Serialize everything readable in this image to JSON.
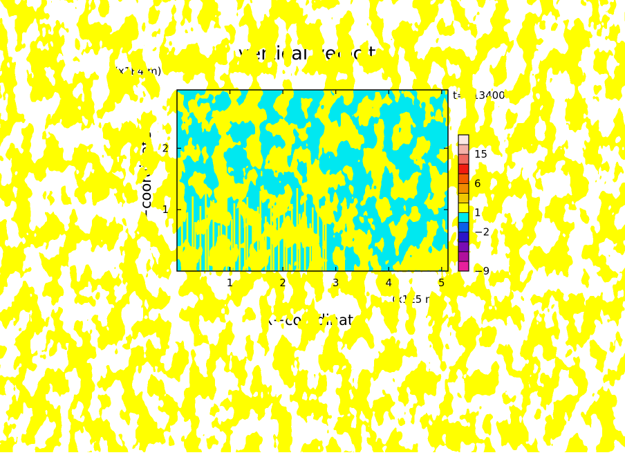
{
  "chart_data": {
    "type": "heatmap",
    "title": "vertical velocity",
    "xlabel": "X−coordinate",
    "ylabel": "Z−coordinate",
    "x_unit": "(x1E5 m)",
    "y_unit": "(x1E4 m)",
    "time_label": "t=113400 s",
    "xlim": [
      0,
      5.12
    ],
    "ylim": [
      0,
      2.95
    ],
    "x_ticks": [
      1,
      2,
      3,
      4,
      5
    ],
    "y_ticks": [
      1,
      2
    ],
    "field_colors": {
      "updraft": "#ffff00",
      "downdraft": "#00e8f0"
    },
    "colorbar": {
      "levels": [
        {
          "label": "-9",
          "color": "#e8209c"
        },
        {
          "label": "",
          "color": "#b0109c"
        },
        {
          "label": "",
          "color": "#7a0cb4"
        },
        {
          "label": "",
          "color": "#2c14c8"
        },
        {
          "label": "-2",
          "color": "#0c60e8"
        },
        {
          "label": "",
          "color": "#00e8f0"
        },
        {
          "label": "1",
          "color": "#ffff00"
        },
        {
          "label": "",
          "color": "#f0c800"
        },
        {
          "label": "",
          "color": "#f08c00"
        },
        {
          "label": "6",
          "color": "#f05a00"
        },
        {
          "label": "",
          "color": "#f01c10"
        },
        {
          "label": "",
          "color": "#f06a60"
        },
        {
          "label": "15",
          "color": "#f4b0a8"
        },
        {
          "label": "",
          "color": "#fce8e4"
        }
      ]
    }
  }
}
